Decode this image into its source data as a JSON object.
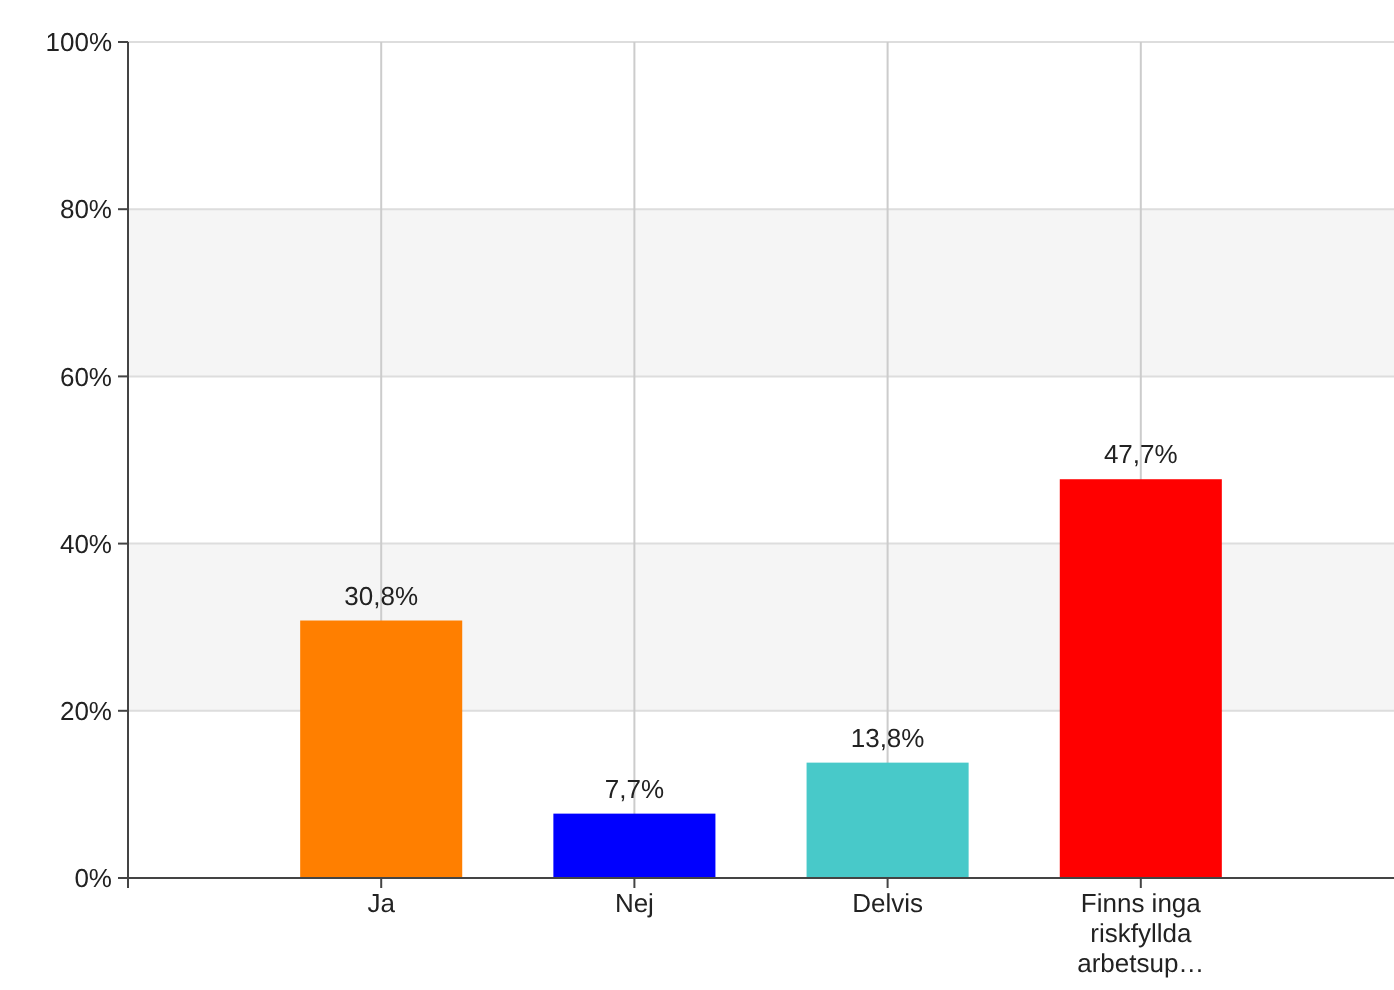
{
  "chart_data": {
    "type": "bar",
    "categories": [
      "Ja",
      "Nej",
      "Delvis",
      "Finns inga riskfyllda arbetsup…"
    ],
    "values": [
      30.8,
      7.7,
      13.8,
      47.7
    ],
    "colors": [
      "#ff7f00",
      "#0000ff",
      "#48c9c9",
      "#ff0000"
    ],
    "value_labels": [
      "30,8%",
      "7,7%",
      "13,8%",
      "47,7%"
    ],
    "ylim": [
      0,
      100
    ],
    "yticks": [
      {
        "value": 0,
        "label": "0%"
      },
      {
        "value": 20,
        "label": "20%"
      },
      {
        "value": 40,
        "label": "40%"
      },
      {
        "value": 60,
        "label": "60%"
      },
      {
        "value": 80,
        "label": "80%"
      },
      {
        "value": 100,
        "label": "100%"
      }
    ],
    "grid": true
  }
}
